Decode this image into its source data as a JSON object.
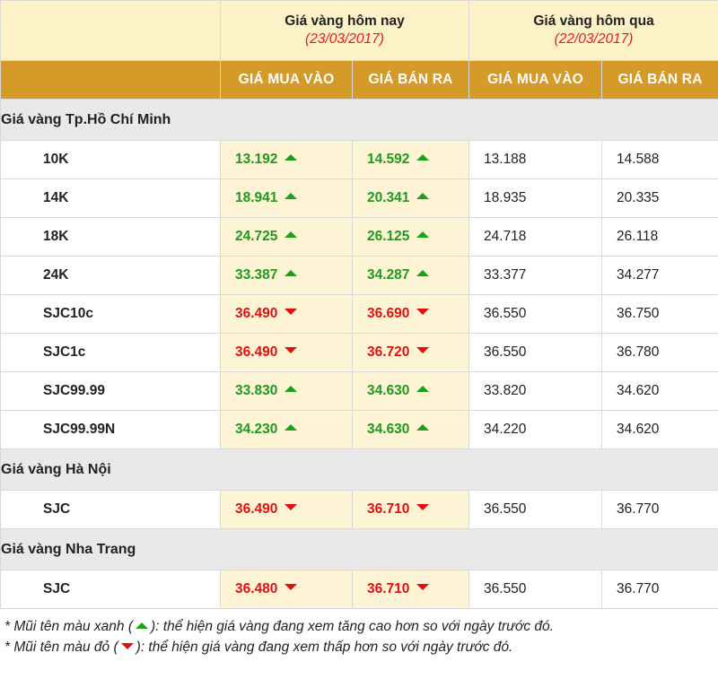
{
  "header": {
    "today": {
      "title": "Giá vàng hôm nay",
      "date": "(23/03/2017)"
    },
    "yesterday": {
      "title": "Giá vàng hôm qua",
      "date": "(22/03/2017)"
    }
  },
  "columns": {
    "today_buy": "GIÁ MUA VÀO",
    "today_sell": "GIÁ BÁN RA",
    "prev_buy": "GIÁ MUA VÀO",
    "prev_sell": "GIÁ BÁN RA"
  },
  "groups": [
    {
      "name": "Giá vàng Tp.Hồ Chí Minh",
      "rows": [
        {
          "name": "10K",
          "today_buy": "13.192",
          "buy_trend": "up",
          "today_sell": "14.592",
          "sell_trend": "up",
          "prev_buy": "13.188",
          "prev_sell": "14.588"
        },
        {
          "name": "14K",
          "today_buy": "18.941",
          "buy_trend": "up",
          "today_sell": "20.341",
          "sell_trend": "up",
          "prev_buy": "18.935",
          "prev_sell": "20.335"
        },
        {
          "name": "18K",
          "today_buy": "24.725",
          "buy_trend": "up",
          "today_sell": "26.125",
          "sell_trend": "up",
          "prev_buy": "24.718",
          "prev_sell": "26.118"
        },
        {
          "name": "24K",
          "today_buy": "33.387",
          "buy_trend": "up",
          "today_sell": "34.287",
          "sell_trend": "up",
          "prev_buy": "33.377",
          "prev_sell": "34.277"
        },
        {
          "name": "SJC10c",
          "today_buy": "36.490",
          "buy_trend": "down",
          "today_sell": "36.690",
          "sell_trend": "down",
          "prev_buy": "36.550",
          "prev_sell": "36.750"
        },
        {
          "name": "SJC1c",
          "today_buy": "36.490",
          "buy_trend": "down",
          "today_sell": "36.720",
          "sell_trend": "down",
          "prev_buy": "36.550",
          "prev_sell": "36.780"
        },
        {
          "name": "SJC99.99",
          "today_buy": "33.830",
          "buy_trend": "up",
          "today_sell": "34.630",
          "sell_trend": "up",
          "prev_buy": "33.820",
          "prev_sell": "34.620"
        },
        {
          "name": "SJC99.99N",
          "today_buy": "34.230",
          "buy_trend": "up",
          "today_sell": "34.630",
          "sell_trend": "up",
          "prev_buy": "34.220",
          "prev_sell": "34.620"
        }
      ]
    },
    {
      "name": "Giá vàng Hà Nội",
      "rows": [
        {
          "name": "SJC",
          "today_buy": "36.490",
          "buy_trend": "down",
          "today_sell": "36.710",
          "sell_trend": "down",
          "prev_buy": "36.550",
          "prev_sell": "36.770"
        }
      ]
    },
    {
      "name": "Giá vàng Nha Trang",
      "rows": [
        {
          "name": "SJC",
          "today_buy": "36.480",
          "buy_trend": "down",
          "today_sell": "36.710",
          "sell_trend": "down",
          "prev_buy": "36.550",
          "prev_sell": "36.770"
        }
      ]
    }
  ],
  "notes": {
    "green_prefix": "* Mũi tên màu xanh (",
    "green_suffix": "): thể hiện giá vàng đang xem tăng cao hơn so với ngày trước đó.",
    "red_prefix": "* Mũi tên màu đỏ (",
    "red_suffix": "): thể hiện giá vàng đang xem thấp hơn so với ngày trước đó."
  },
  "colors": {
    "header_gold": "#d59a28",
    "today_bg": "#fdf4d5",
    "up": "#1aa21a",
    "down": "#e01010"
  }
}
